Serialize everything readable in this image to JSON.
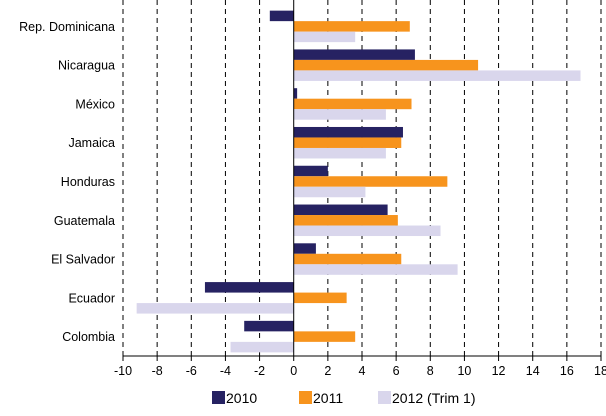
{
  "chart_data": {
    "type": "bar",
    "orientation": "horizontal",
    "categories": [
      "Rep. Dominicana",
      "Nicaragua",
      "México",
      "Jamaica",
      "Honduras",
      "Guatemala",
      "El Salvador",
      "Ecuador",
      "Colombia"
    ],
    "series": [
      {
        "name": "2010",
        "color": "#262262",
        "values": [
          -1.4,
          7.1,
          0.2,
          6.4,
          2.0,
          5.5,
          1.3,
          -5.2,
          -2.9
        ]
      },
      {
        "name": "2011",
        "color": "#f7941d",
        "values": [
          6.8,
          10.8,
          6.9,
          6.3,
          9.0,
          6.1,
          6.3,
          3.1,
          3.6
        ]
      },
      {
        "name": "2012 (Trim 1)",
        "color": "#d9d6ec",
        "values": [
          3.6,
          16.8,
          5.4,
          5.4,
          4.2,
          8.6,
          9.6,
          -9.2,
          -3.7
        ]
      }
    ],
    "xlim": [
      -10,
      18
    ],
    "xticks": [
      "-10",
      "-8",
      "-6",
      "-4",
      "-2",
      "0",
      "2",
      "4",
      "6",
      "8",
      "10",
      "12",
      "14",
      "16",
      "18"
    ],
    "grid": "vertical dashed",
    "legend": "bottom"
  }
}
